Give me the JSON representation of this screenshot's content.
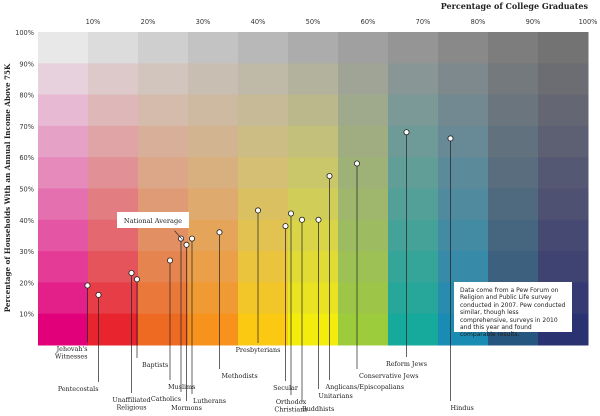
{
  "chart_data": {
    "type": "scatter",
    "title": "",
    "xlabel": "Percentage of College Graduates",
    "ylabel": "Percentage of Households With an Annual Income Above 75K",
    "xlim": [
      0,
      100
    ],
    "ylim": [
      0,
      100
    ],
    "x_ticks": [
      "10%",
      "20%",
      "30%",
      "40%",
      "50%",
      "60%",
      "70%",
      "80%",
      "90%",
      "100%"
    ],
    "y_ticks": [
      "10%",
      "20%",
      "30%",
      "40%",
      "50%",
      "60%",
      "70%",
      "80%",
      "90%",
      "100%"
    ],
    "grid": true,
    "points": [
      {
        "label": "Jehovah's Witnesses",
        "x": 9,
        "y": 19
      },
      {
        "label": "Pentecostals",
        "x": 11,
        "y": 16
      },
      {
        "label": "Unaffiliated Religious",
        "x": 17,
        "y": 23
      },
      {
        "label": "Baptists",
        "x": 18,
        "y": 21
      },
      {
        "label": "Muslims",
        "x": 24,
        "y": 27
      },
      {
        "label": "Catholics",
        "x": 26,
        "y": 34
      },
      {
        "label": "Mormons",
        "x": 27,
        "y": 32
      },
      {
        "label": "Lutherans",
        "x": 28,
        "y": 34
      },
      {
        "label": "Methodists",
        "x": 33,
        "y": 36
      },
      {
        "label": "Presbyterians",
        "x": 40,
        "y": 43
      },
      {
        "label": "Secular",
        "x": 45,
        "y": 38
      },
      {
        "label": "Orthodox Christians",
        "x": 46,
        "y": 42
      },
      {
        "label": "Buddhists",
        "x": 48,
        "y": 40
      },
      {
        "label": "Unitarians",
        "x": 51,
        "y": 40
      },
      {
        "label": "Anglicans/Episcopalians",
        "x": 53,
        "y": 54
      },
      {
        "label": "Conservative Jews",
        "x": 58,
        "y": 58
      },
      {
        "label": "Reform Jews",
        "x": 67,
        "y": 68
      },
      {
        "label": "Hindus",
        "x": 75,
        "y": 66
      }
    ],
    "annotation": {
      "label": "National Average",
      "x": 27,
      "y": 33
    },
    "note": "Data come from a Pew Forum on Religion and Public Life survey conducted in 2007. Pew conducted similar, though less comprehensive, surveys in 2010 and this year and found comparable results."
  }
}
